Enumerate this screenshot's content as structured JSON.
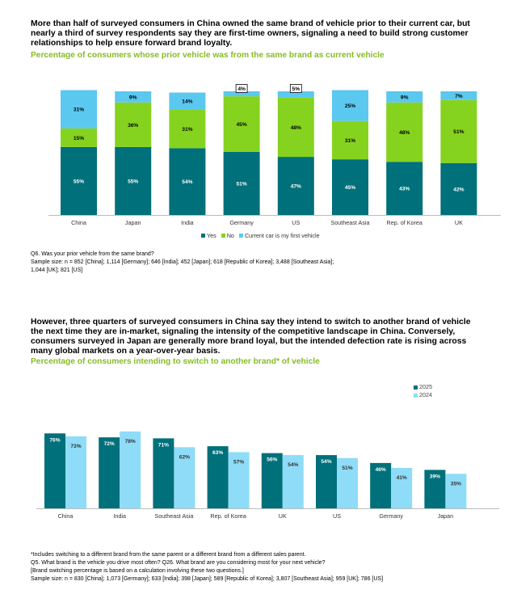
{
  "section1": {
    "headline": "More than half of surveyed consumers in China owned the same brand of vehicle prior to their current car, but nearly a third of survey respondents say they are first-time owners, signaling a need to build strong customer relationships to help ensure forward brand loyalty.",
    "subtitle": "Percentage of consumers whose prior vehicle was from the same brand as current vehicle",
    "legend": [
      {
        "label": "Yes",
        "color": "#00707a"
      },
      {
        "label": "No",
        "color": "#86d31f"
      },
      {
        "label": "Current car is my first vehicle",
        "color": "#5bc8ef"
      }
    ],
    "note_line1": "Q6. Was your prior vehicle from the same brand?",
    "note_line2": "Sample size: n = 852 [China]; 1,114 [Germany]; 646 [India]; 452 [Japan]; 618 [Republic of Korea]; 3,488 [Southeast Asia];",
    "note_line3": "1,044 [UK]; 821 [US]"
  },
  "section2": {
    "headline": "However, three quarters of surveyed consumers in China say they intend to switch to another brand of vehicle the next time they are in-market, signaling the intensity of the competitive landscape in China. Conversely, consumers surveyed in Japan are generally more brand loyal, but the intended defection rate is rising across many global markets on a year-over-year basis.",
    "subtitle": "Percentage of consumers intending to switch to another brand* of vehicle",
    "legend": [
      {
        "label": "2025",
        "color": "#00707a"
      },
      {
        "label": "2024",
        "color": "#8fdcf8"
      }
    ],
    "note_line1": "*Includes switching to a different brand from the same parent or a different brand from a different sales parent.",
    "note_line2": "Q5. What brand is the vehicle you drive most often? Q26. What brand are you considering most for your next vehicle?",
    "note_line3": "[Brand switching percentage is based on a calculation involving these two questions.]",
    "note_line4": "Sample size: n = 830 [China]; 1,073 [Germany]; 633 [India]; 398 [Japan]; 589 [Republic of Korea]; 3,807 [Southeast Asia]; 959 [UK]; 786 [US]"
  },
  "chart_data": [
    {
      "type": "bar",
      "stacked": true,
      "title": "Percentage of consumers whose prior vehicle was from the same brand as current vehicle",
      "categories": [
        "China",
        "Japan",
        "India",
        "Germany",
        "US",
        "Southeast Asia",
        "Rep. of Korea",
        "UK"
      ],
      "series": [
        {
          "name": "Yes",
          "color": "#00707a",
          "values": [
            55,
            55,
            54,
            51,
            47,
            45,
            43,
            42
          ]
        },
        {
          "name": "No",
          "color": "#86d31f",
          "values": [
            15,
            36,
            31,
            45,
            48,
            31,
            48,
            51
          ]
        },
        {
          "name": "Current car is my first vehicle",
          "color": "#5bc8ef",
          "values": [
            31,
            9,
            14,
            4,
            5,
            25,
            9,
            7
          ]
        }
      ],
      "boxed_labels": [
        [
          3,
          2
        ],
        [
          4,
          2
        ]
      ],
      "unit": "%",
      "ylim": [
        0,
        100
      ],
      "grid": false,
      "legend_position": "bottom"
    },
    {
      "type": "bar",
      "stacked": false,
      "title": "Percentage of consumers intending to switch to another brand* of vehicle",
      "categories": [
        "China",
        "India",
        "Southeast Asia",
        "Rep. of Korea",
        "UK",
        "US",
        "Germany",
        "Japan"
      ],
      "series": [
        {
          "name": "2025",
          "color": "#00707a",
          "values": [
            76,
            72,
            71,
            63,
            56,
            54,
            46,
            39
          ]
        },
        {
          "name": "2024",
          "color": "#8fdcf8",
          "values": [
            73,
            78,
            62,
            57,
            54,
            51,
            41,
            35
          ]
        }
      ],
      "unit": "%",
      "ylim": [
        0,
        100
      ],
      "grid": false,
      "legend_position": "top-right"
    }
  ]
}
